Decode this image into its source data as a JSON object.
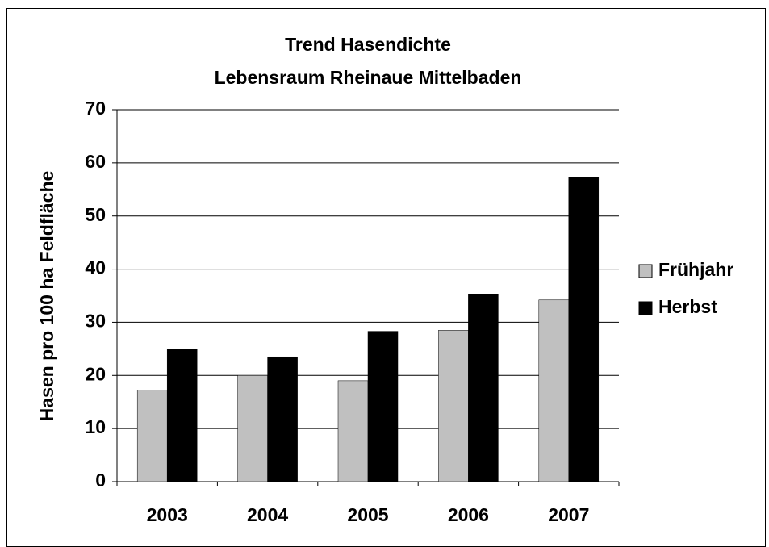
{
  "chart_data": {
    "type": "bar",
    "title": [
      "Trend Hasendichte",
      "Lebensraum Rheinaue Mittelbaden"
    ],
    "ylabel": "Hasen pro 100 ha Feldfläche",
    "categories": [
      "2003",
      "2004",
      "2005",
      "2006",
      "2007"
    ],
    "series": [
      {
        "name": "Frühjahr",
        "color": "#c0c0c0",
        "values": [
          17.2,
          20,
          19,
          28.5,
          34.2
        ]
      },
      {
        "name": "Herbst",
        "color": "#000000",
        "values": [
          25,
          23.5,
          28.3,
          35.3,
          57.3
        ]
      }
    ],
    "ylim": [
      0,
      70
    ],
    "yticks": [
      0,
      10,
      20,
      30,
      40,
      50,
      60,
      70
    ],
    "grid": true,
    "legend": "right"
  }
}
